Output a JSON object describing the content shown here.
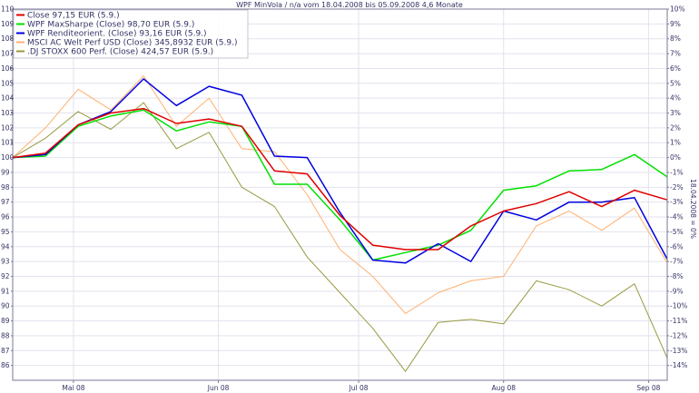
{
  "chart_data": {
    "type": "line",
    "title": "WPF MinVola / n/a vom 18.04.2008 bis 05.09.2008 4,6 Monate",
    "right_axis_label": "18.04.2008 = 0%",
    "x_axis": {
      "start": "2008-04-18",
      "end": "2008-09-05",
      "ticks": [
        {
          "label": "Mai 08",
          "date": "2008-05-01"
        },
        {
          "label": "Jun 08",
          "date": "2008-06-01"
        },
        {
          "label": "Jul 08",
          "date": "2008-07-01"
        },
        {
          "label": "Aug 08",
          "date": "2008-08-01"
        },
        {
          "label": "Sep 08",
          "date": "2008-09-01"
        }
      ]
    },
    "left_axis": {
      "ylim": [
        85,
        110
      ],
      "ticks": [
        86,
        87,
        88,
        89,
        90,
        91,
        92,
        93,
        94,
        95,
        96,
        97,
        98,
        99,
        100,
        101,
        102,
        103,
        104,
        105,
        106,
        107,
        108,
        109,
        110
      ]
    },
    "right_axis": {
      "ylim": [
        -15,
        10
      ],
      "ticks": [
        "10%",
        "9%",
        "8%",
        "7%",
        "6%",
        "5%",
        "4%",
        "3%",
        "2%",
        "1%",
        "0%",
        "-1%",
        "-2%",
        "-3%",
        "-4%",
        "-5%",
        "-6%",
        "-7%",
        "-8%",
        "-9%",
        "-10%",
        "-11%",
        "-12%",
        "-13%",
        "-14%"
      ]
    },
    "grid": true,
    "legend_position": "top-left",
    "dates": [
      "2008-04-18",
      "2008-04-25",
      "2008-05-02",
      "2008-05-09",
      "2008-05-16",
      "2008-05-23",
      "2008-05-30",
      "2008-06-06",
      "2008-06-13",
      "2008-06-20",
      "2008-06-27",
      "2008-07-04",
      "2008-07-11",
      "2008-07-18",
      "2008-07-25",
      "2008-08-01",
      "2008-08-08",
      "2008-08-15",
      "2008-08-22",
      "2008-08-29",
      "2008-09-05"
    ],
    "series": [
      {
        "name": "Close 97,15 EUR (5.9.)",
        "color": "#e00000",
        "values": [
          100.0,
          100.3,
          102.2,
          103.0,
          103.3,
          102.3,
          102.6,
          102.1,
          99.1,
          98.9,
          96.1,
          94.1,
          93.8,
          93.8,
          95.4,
          96.4,
          96.9,
          97.7,
          96.7,
          97.8,
          97.15
        ]
      },
      {
        "name": "WPF MaxSharpe (Close) 98,70 EUR (5.9.)",
        "color": "#00e000",
        "values": [
          100.0,
          100.1,
          102.1,
          102.8,
          103.2,
          101.8,
          102.4,
          102.1,
          98.2,
          98.2,
          95.8,
          93.1,
          93.6,
          94.1,
          95.1,
          97.8,
          98.1,
          99.1,
          99.2,
          100.2,
          98.7
        ]
      },
      {
        "name": "WPF Renditeorient. (Close) 93,16 EUR (5.9.)",
        "color": "#0000e0",
        "values": [
          100.0,
          100.2,
          102.2,
          103.1,
          105.3,
          103.5,
          104.8,
          104.2,
          100.1,
          100.0,
          96.3,
          93.1,
          92.9,
          94.2,
          93.0,
          96.4,
          95.8,
          97.0,
          97.0,
          97.3,
          93.16
        ]
      },
      {
        "name": "MSCI AC Welt Perf USD (Close) 345,8932 EUR (5.9.)",
        "color": "#ffb070",
        "values": [
          100.0,
          102.0,
          104.6,
          103.2,
          105.5,
          102.1,
          104.0,
          100.6,
          100.4,
          97.5,
          93.8,
          92.0,
          89.5,
          90.9,
          91.7,
          92.0,
          95.4,
          96.4,
          95.1,
          96.6,
          92.9
        ]
      },
      {
        "name": ".DJ STOXX 600 Perf. (Close) 424,57 EUR (5.9.)",
        "color": "#999940",
        "values": [
          100.0,
          101.3,
          103.1,
          101.9,
          103.7,
          100.6,
          101.7,
          98.0,
          96.7,
          93.3,
          90.9,
          88.5,
          85.6,
          88.9,
          89.1,
          88.8,
          91.7,
          91.1,
          90.0,
          91.5,
          86.5
        ]
      }
    ]
  }
}
